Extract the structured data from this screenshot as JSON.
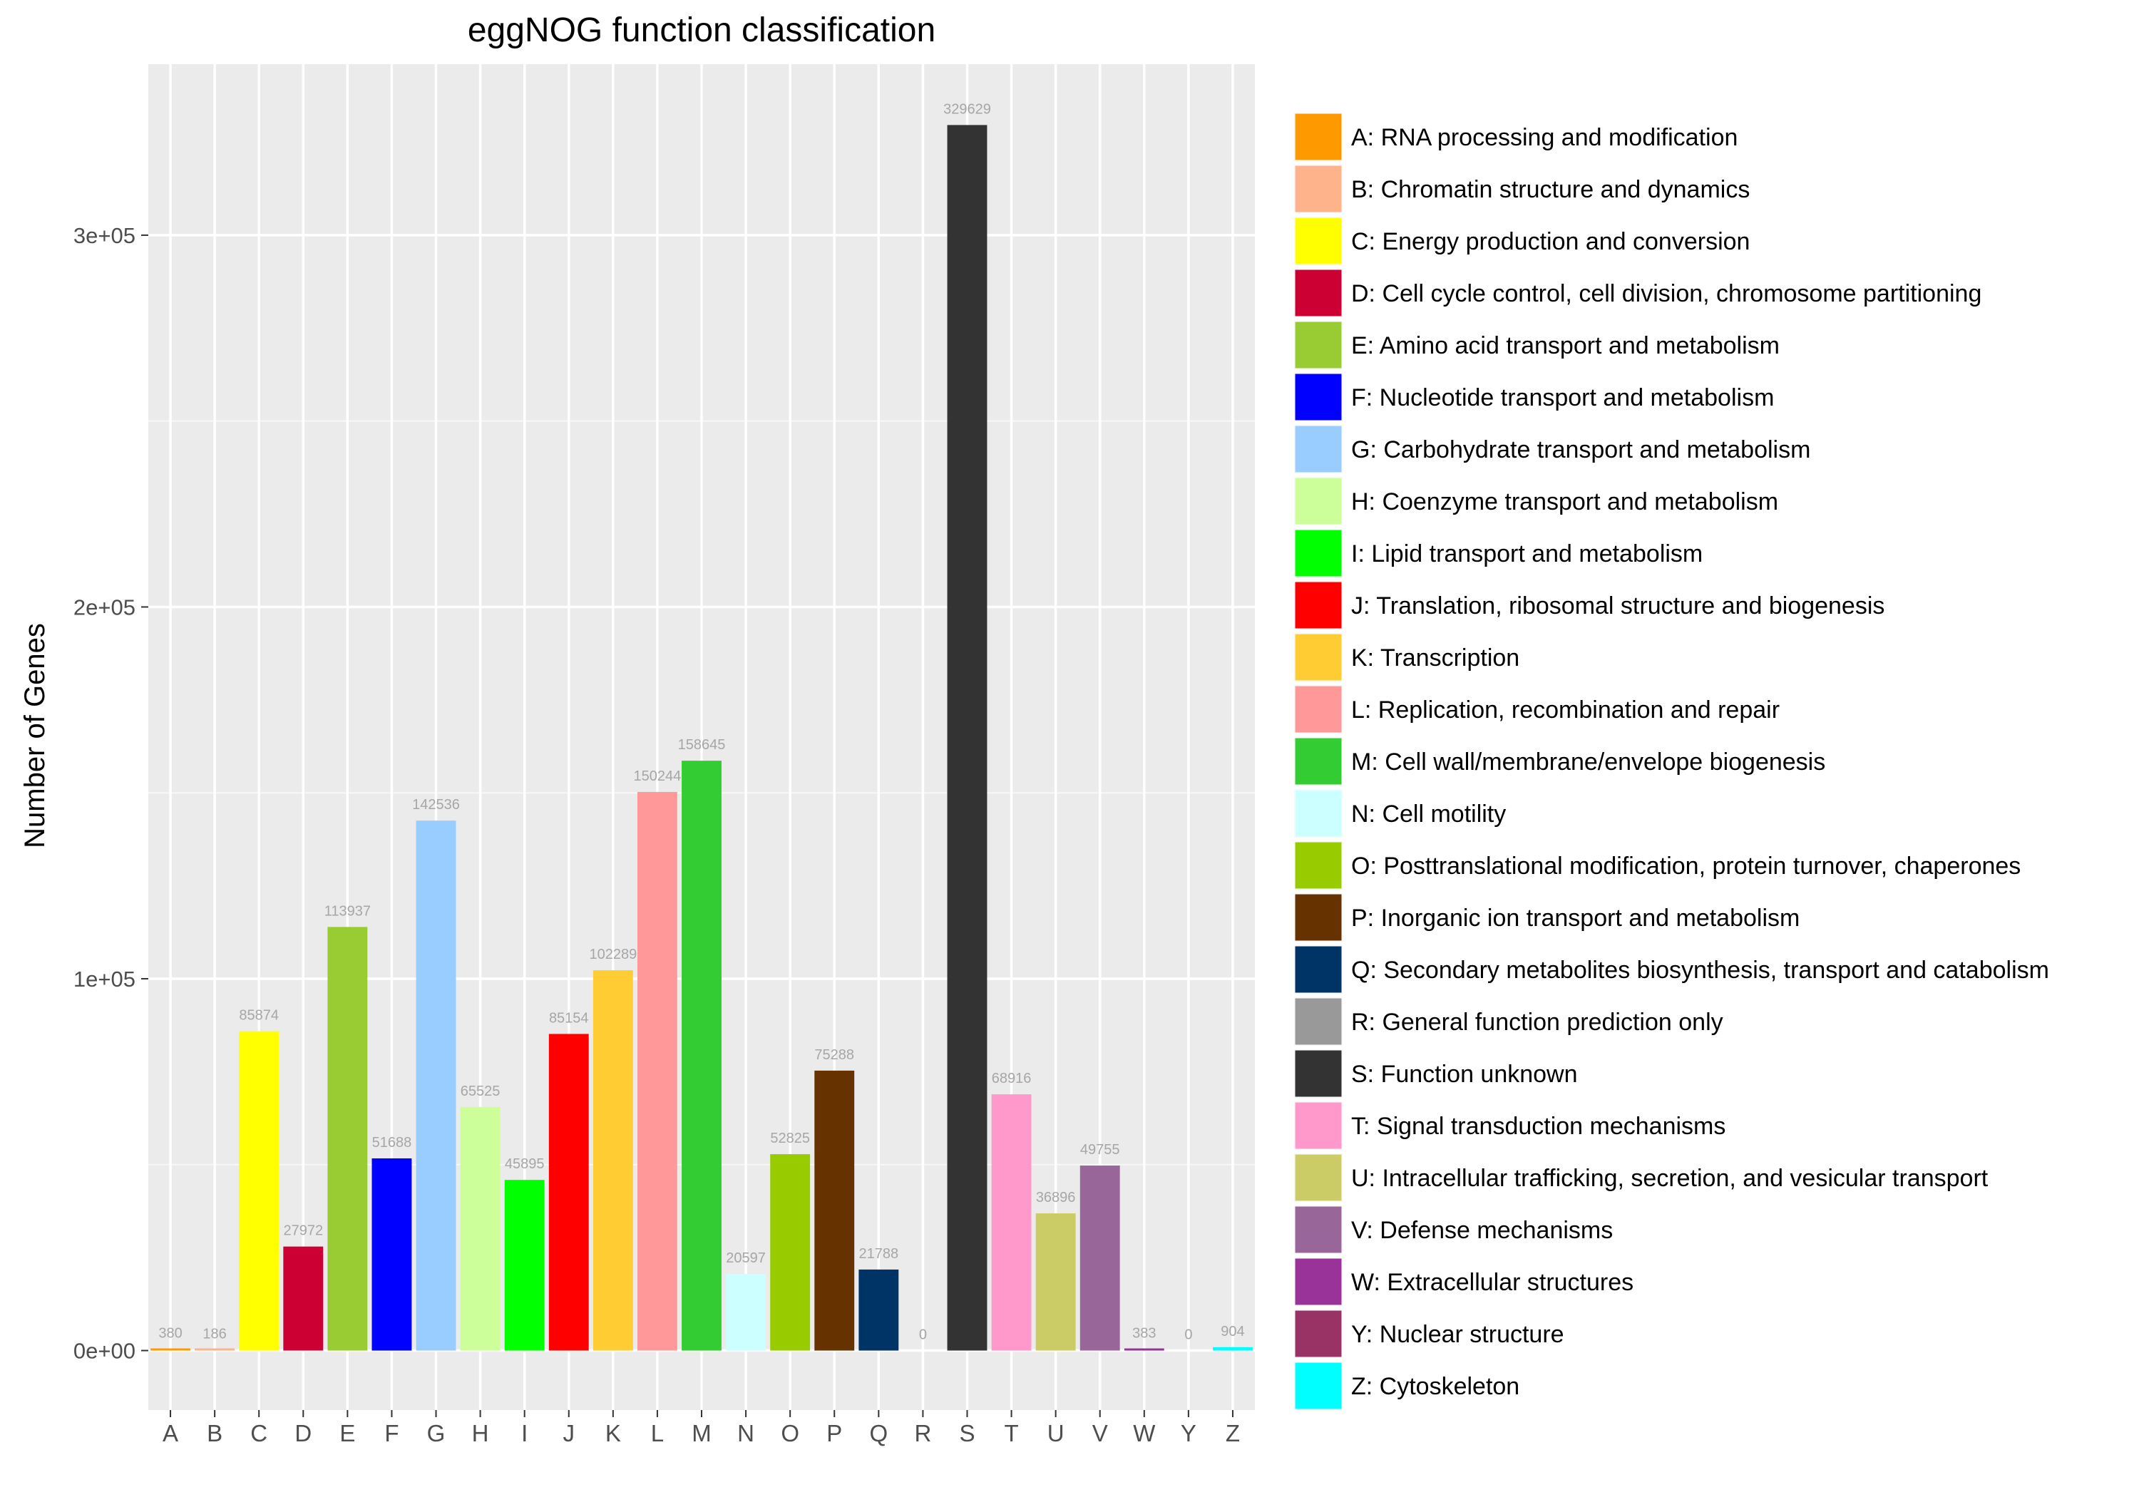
{
  "chart_data": {
    "type": "bar",
    "title": "eggNOG function classification",
    "xlabel": "",
    "ylabel": "Number of Genes",
    "ylim": [
      -16000,
      346000
    ],
    "yticks": [
      0,
      100000,
      200000,
      300000
    ],
    "ytick_labels": [
      "0e+00",
      "1e+05",
      "2e+05",
      "3e+05"
    ],
    "grid": true,
    "legend_position": "right",
    "categories": [
      "A",
      "B",
      "C",
      "D",
      "E",
      "F",
      "G",
      "H",
      "I",
      "J",
      "K",
      "L",
      "M",
      "N",
      "O",
      "P",
      "Q",
      "R",
      "S",
      "T",
      "U",
      "V",
      "W",
      "Y",
      "Z"
    ],
    "values": [
      380,
      186,
      85874,
      27972,
      113937,
      51688,
      142536,
      65525,
      45895,
      85154,
      102289,
      150244,
      158645,
      20597,
      52825,
      75288,
      21788,
      0,
      329629,
      68916,
      36896,
      49755,
      383,
      0,
      904
    ],
    "colors": [
      "#ff9900",
      "#ffb38a",
      "#ffff00",
      "#cc0033",
      "#99cc33",
      "#0000ff",
      "#99ccff",
      "#ccff99",
      "#00ff00",
      "#ff0000",
      "#ffcc33",
      "#ff9999",
      "#33cc33",
      "#ccffff",
      "#99cc00",
      "#663300",
      "#003366",
      "#999999",
      "#333333",
      "#ff99cc",
      "#cccc66",
      "#996699",
      "#993399",
      "#993366",
      "#00ffff"
    ],
    "legend": [
      "A: RNA processing and modification",
      "B: Chromatin structure and dynamics",
      "C: Energy production and conversion",
      "D: Cell cycle control, cell division, chromosome partitioning",
      "E: Amino acid transport and metabolism",
      "F: Nucleotide transport and metabolism",
      "G: Carbohydrate transport and metabolism",
      "H: Coenzyme transport and metabolism",
      "I: Lipid transport and metabolism",
      "J: Translation, ribosomal structure and biogenesis",
      "K: Transcription",
      "L: Replication, recombination and repair",
      "M: Cell wall/membrane/envelope biogenesis",
      "N: Cell motility",
      "O: Posttranslational modification, protein turnover, chaperones",
      "P: Inorganic ion transport and metabolism",
      "Q: Secondary metabolites biosynthesis, transport and catabolism",
      "R: General function prediction only",
      "S: Function unknown",
      "T: Signal transduction mechanisms",
      "U: Intracellular trafficking, secretion, and vesicular transport",
      "V: Defense mechanisms",
      "W: Extracellular structures",
      "Y: Nuclear structure",
      "Z: Cytoskeleton"
    ]
  }
}
